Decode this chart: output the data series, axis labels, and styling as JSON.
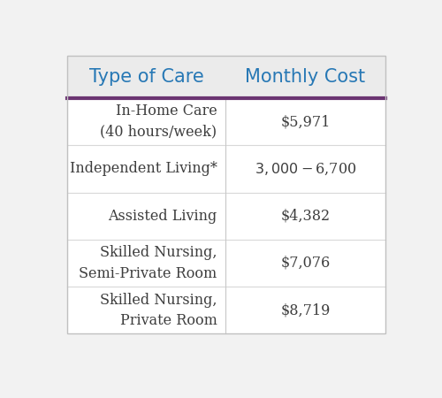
{
  "header": [
    "Type of Care",
    "Monthly Cost"
  ],
  "rows": [
    [
      "In-Home Care\n(40 hours/week)",
      "$5,971"
    ],
    [
      "Independent Living*",
      "$3,000 - $6,700"
    ],
    [
      "Assisted Living",
      "$4,382"
    ],
    [
      "Skilled Nursing,\nSemi-Private Room",
      "$7,076"
    ],
    [
      "Skilled Nursing,\nPrivate Room",
      "$8,719"
    ]
  ],
  "header_bg": "#ebebeb",
  "row_bg_all": "#ffffff",
  "header_text_color": "#2778b5",
  "body_text_color": "#3d3d3d",
  "divider_color": "#6b3472",
  "col_divider_color": "#c8c8c8",
  "row_divider_color": "#d8d8d8",
  "outer_bg": "#f2f2f2",
  "table_border_color": "#c0c0c0",
  "header_fontsize": 15,
  "body_fontsize": 11.5
}
